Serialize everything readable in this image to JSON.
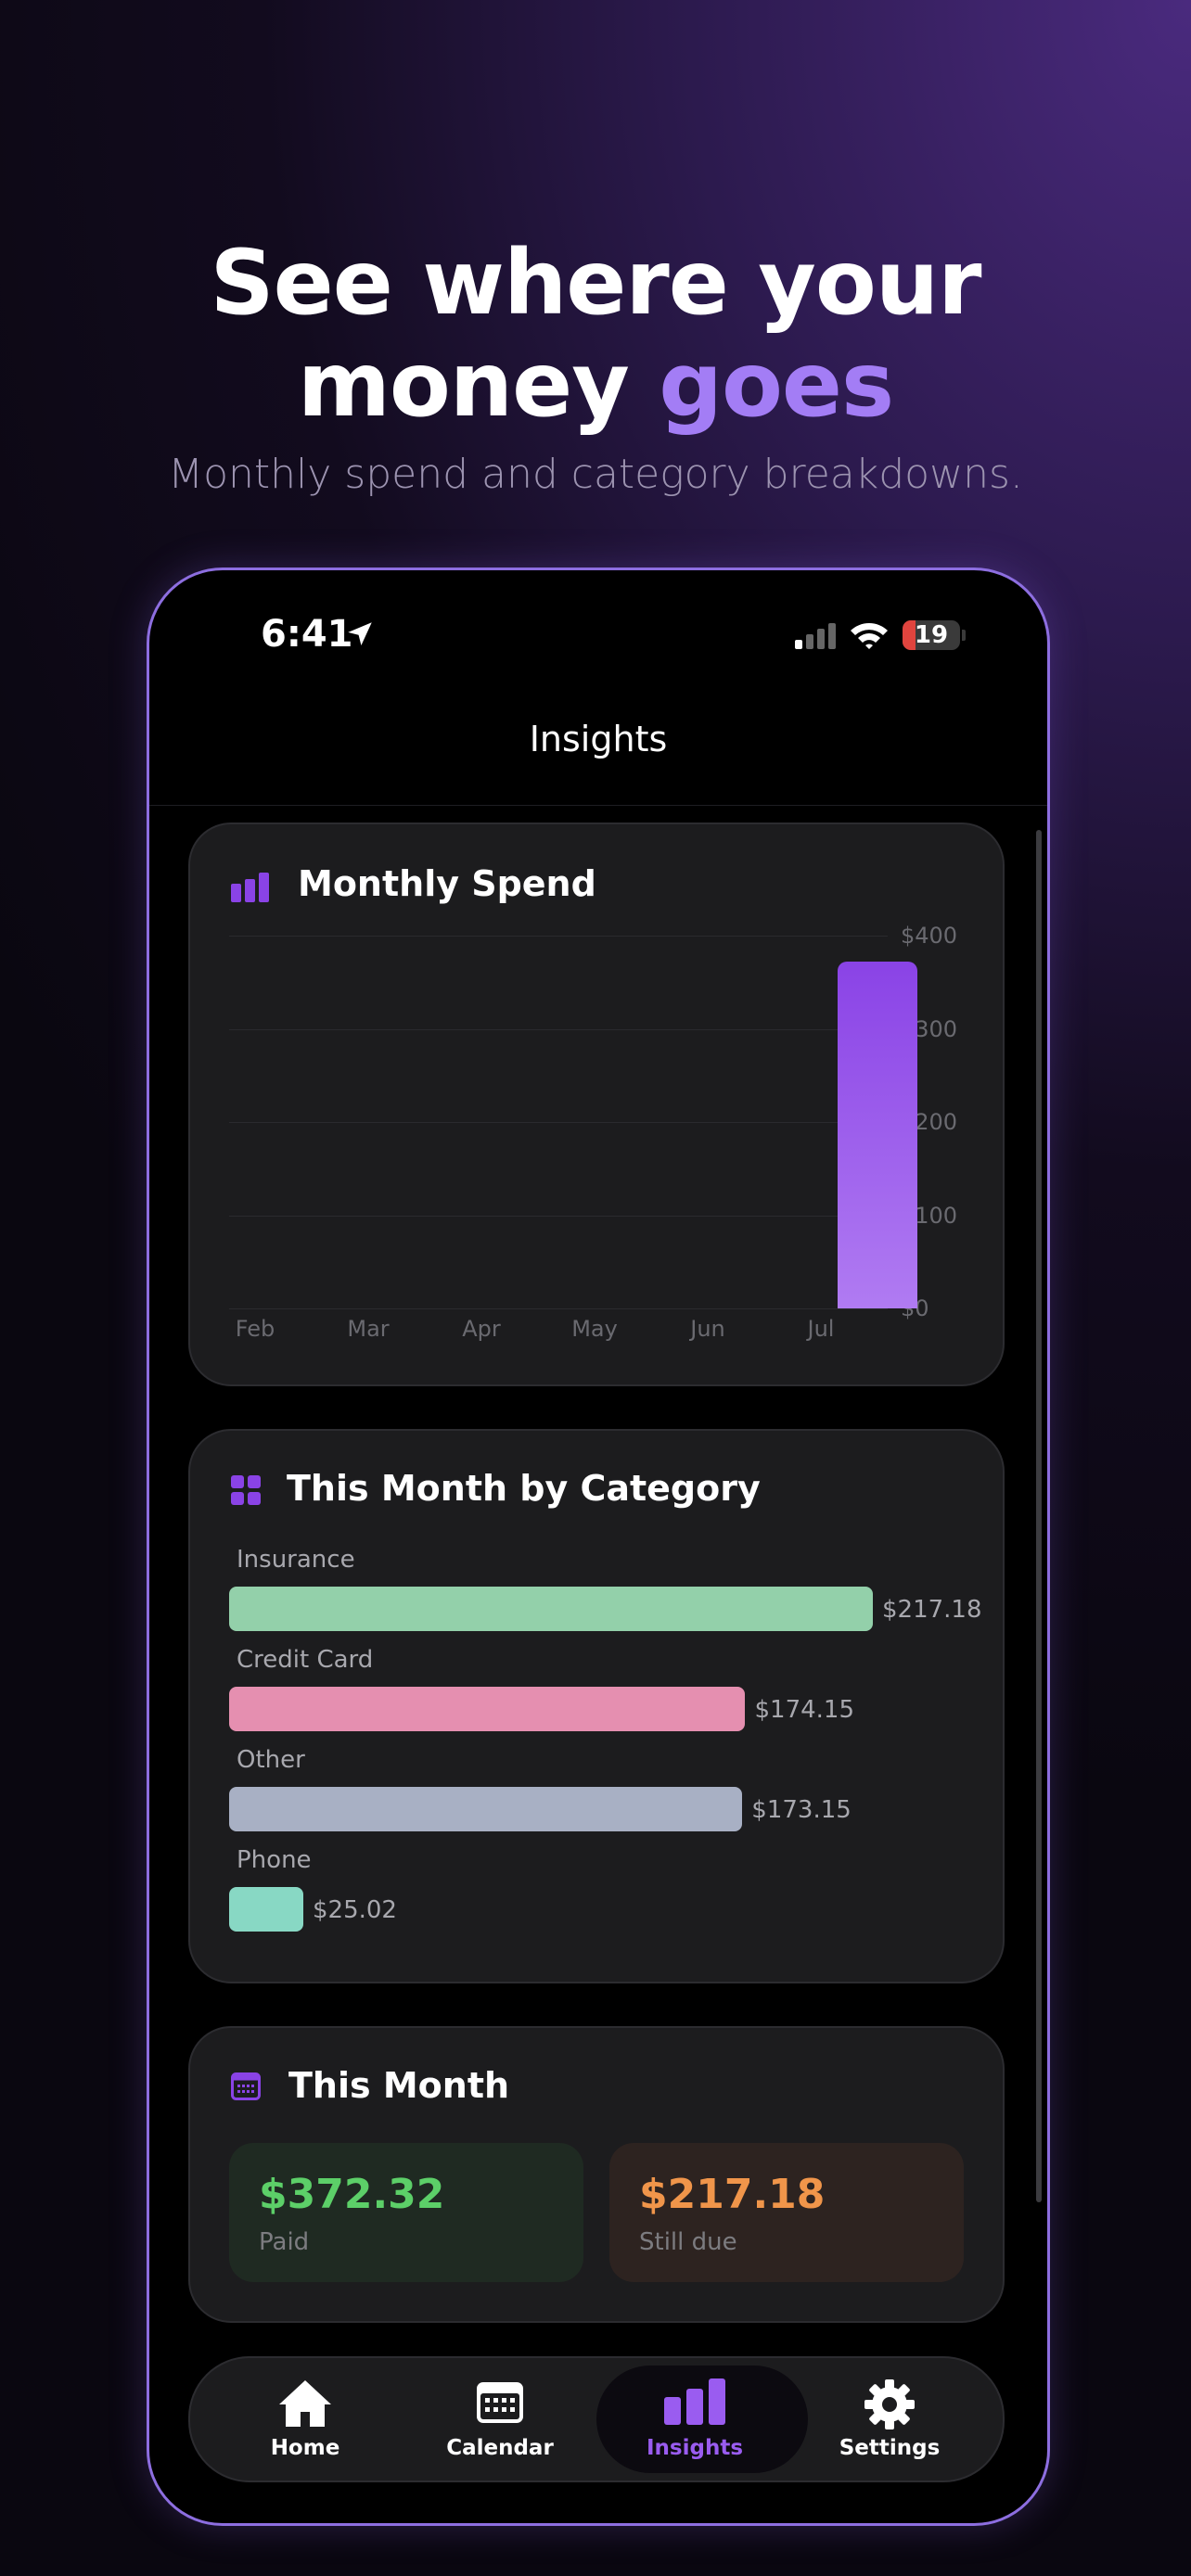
{
  "hero": {
    "title_line1": "See where your",
    "title_line2_plain": "money ",
    "title_line2_accent": "goes",
    "subtitle": "Monthly spend and category breakdowns."
  },
  "status_bar": {
    "time": "6:41",
    "battery": "19"
  },
  "nav": {
    "title": "Insights"
  },
  "monthly_spend": {
    "title": "Monthly Spend",
    "icon": "bar-chart-icon"
  },
  "chart_data": {
    "type": "bar",
    "title": "Monthly Spend",
    "categories": [
      "Feb",
      "Mar",
      "Apr",
      "May",
      "Jun",
      "Jul"
    ],
    "values": [
      0,
      0,
      0,
      0,
      0,
      372.32
    ],
    "ylim": [
      0,
      400
    ],
    "yticks": [
      "$400",
      "$300",
      "$200",
      "$100",
      "$0"
    ],
    "ytick_values": [
      400,
      300,
      200,
      100,
      0
    ],
    "grid": true,
    "bar_color": "#9a5cf0"
  },
  "category": {
    "title": "This Month by Category",
    "icon": "grid-icon",
    "items": [
      {
        "label": "Insurance",
        "value": "$217.18",
        "amount": 217.18,
        "color": "#93d0aa"
      },
      {
        "label": "Credit Card",
        "value": "$174.15",
        "amount": 174.15,
        "color": "#e58fb0"
      },
      {
        "label": "Other",
        "value": "$173.15",
        "amount": 173.15,
        "color": "#a8b0c4"
      },
      {
        "label": "Phone",
        "value": "$25.02",
        "amount": 25.02,
        "color": "#88d8c4"
      }
    ]
  },
  "this_month": {
    "title": "This Month",
    "icon": "calendar-icon",
    "paid": {
      "amount": "$372.32",
      "label": "Paid",
      "color": "#5ccf68"
    },
    "due": {
      "amount": "$217.18",
      "label": "Still due",
      "color": "#f0954a"
    }
  },
  "tabs": [
    {
      "label": "Home",
      "icon": "home-icon"
    },
    {
      "label": "Calendar",
      "icon": "calendar-icon"
    },
    {
      "label": "Insights",
      "icon": "bar-chart-icon",
      "active": true
    },
    {
      "label": "Settings",
      "icon": "gear-icon"
    }
  ],
  "colors": {
    "accent": "#9a5cf0",
    "accent_light": "#a37df5"
  }
}
